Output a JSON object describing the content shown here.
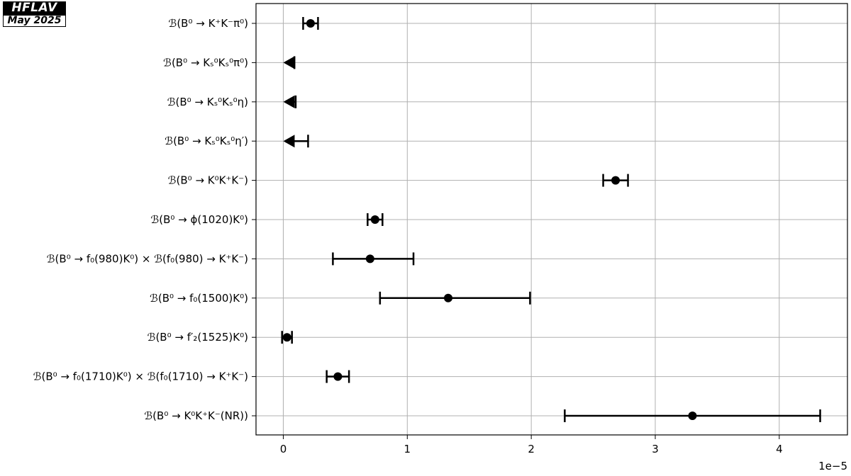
{
  "badge": {
    "top": "HFLAV",
    "bottom": "May 2025"
  },
  "chart_data": {
    "type": "scatter",
    "orientation": "horizontal",
    "marker_note": "point with symmetric error bar; triangle marks an upper limit",
    "x_scale_label": "1e−5",
    "xlim": [
      -0.22,
      4.55
    ],
    "xticks": [
      0,
      1,
      2,
      3,
      4
    ],
    "grid": true,
    "rows": [
      {
        "label": "ℬ(B⁰ → K⁺K⁻π⁰)",
        "kind": "measurement",
        "value": 0.22,
        "err_lo": 0.06,
        "err_hi": 0.06
      },
      {
        "label": "ℬ(B⁰ → Kₛ⁰Kₛ⁰π⁰)",
        "kind": "limit",
        "value": 0.09
      },
      {
        "label": "ℬ(B⁰ → Kₛ⁰Kₛ⁰η)",
        "kind": "limit",
        "value": 0.1
      },
      {
        "label": "ℬ(B⁰ → Kₛ⁰Kₛ⁰η′)",
        "kind": "limit",
        "value": 0.2
      },
      {
        "label": "ℬ(B⁰ → K⁰K⁺K⁻)",
        "kind": "measurement",
        "value": 2.68,
        "err_lo": 0.1,
        "err_hi": 0.1
      },
      {
        "label": "ℬ(B⁰ → ϕ(1020)K⁰)",
        "kind": "measurement",
        "value": 0.74,
        "err_lo": 0.06,
        "err_hi": 0.06
      },
      {
        "label": "ℬ(B⁰ → f₀(980)K⁰) × ℬ(f₀(980) → K⁺K⁻)",
        "kind": "measurement",
        "value": 0.7,
        "err_lo": 0.3,
        "err_hi": 0.35
      },
      {
        "label": "ℬ(B⁰ → f₀(1500)K⁰)",
        "kind": "measurement",
        "value": 1.33,
        "err_lo": 0.55,
        "err_hi": 0.66
      },
      {
        "label": "ℬ(B⁰ → f′₂(1525)K⁰)",
        "kind": "measurement",
        "value": 0.03,
        "err_lo": 0.04,
        "err_hi": 0.04
      },
      {
        "label": "ℬ(B⁰ → f₀(1710)K⁰) × ℬ(f₀(1710) → K⁺K⁻)",
        "kind": "measurement",
        "value": 0.44,
        "err_lo": 0.09,
        "err_hi": 0.09
      },
      {
        "label": "ℬ(B⁰ → K⁰K⁺K⁻(NR))",
        "kind": "measurement",
        "value": 3.3,
        "err_lo": 1.03,
        "err_hi": 1.03
      }
    ]
  }
}
